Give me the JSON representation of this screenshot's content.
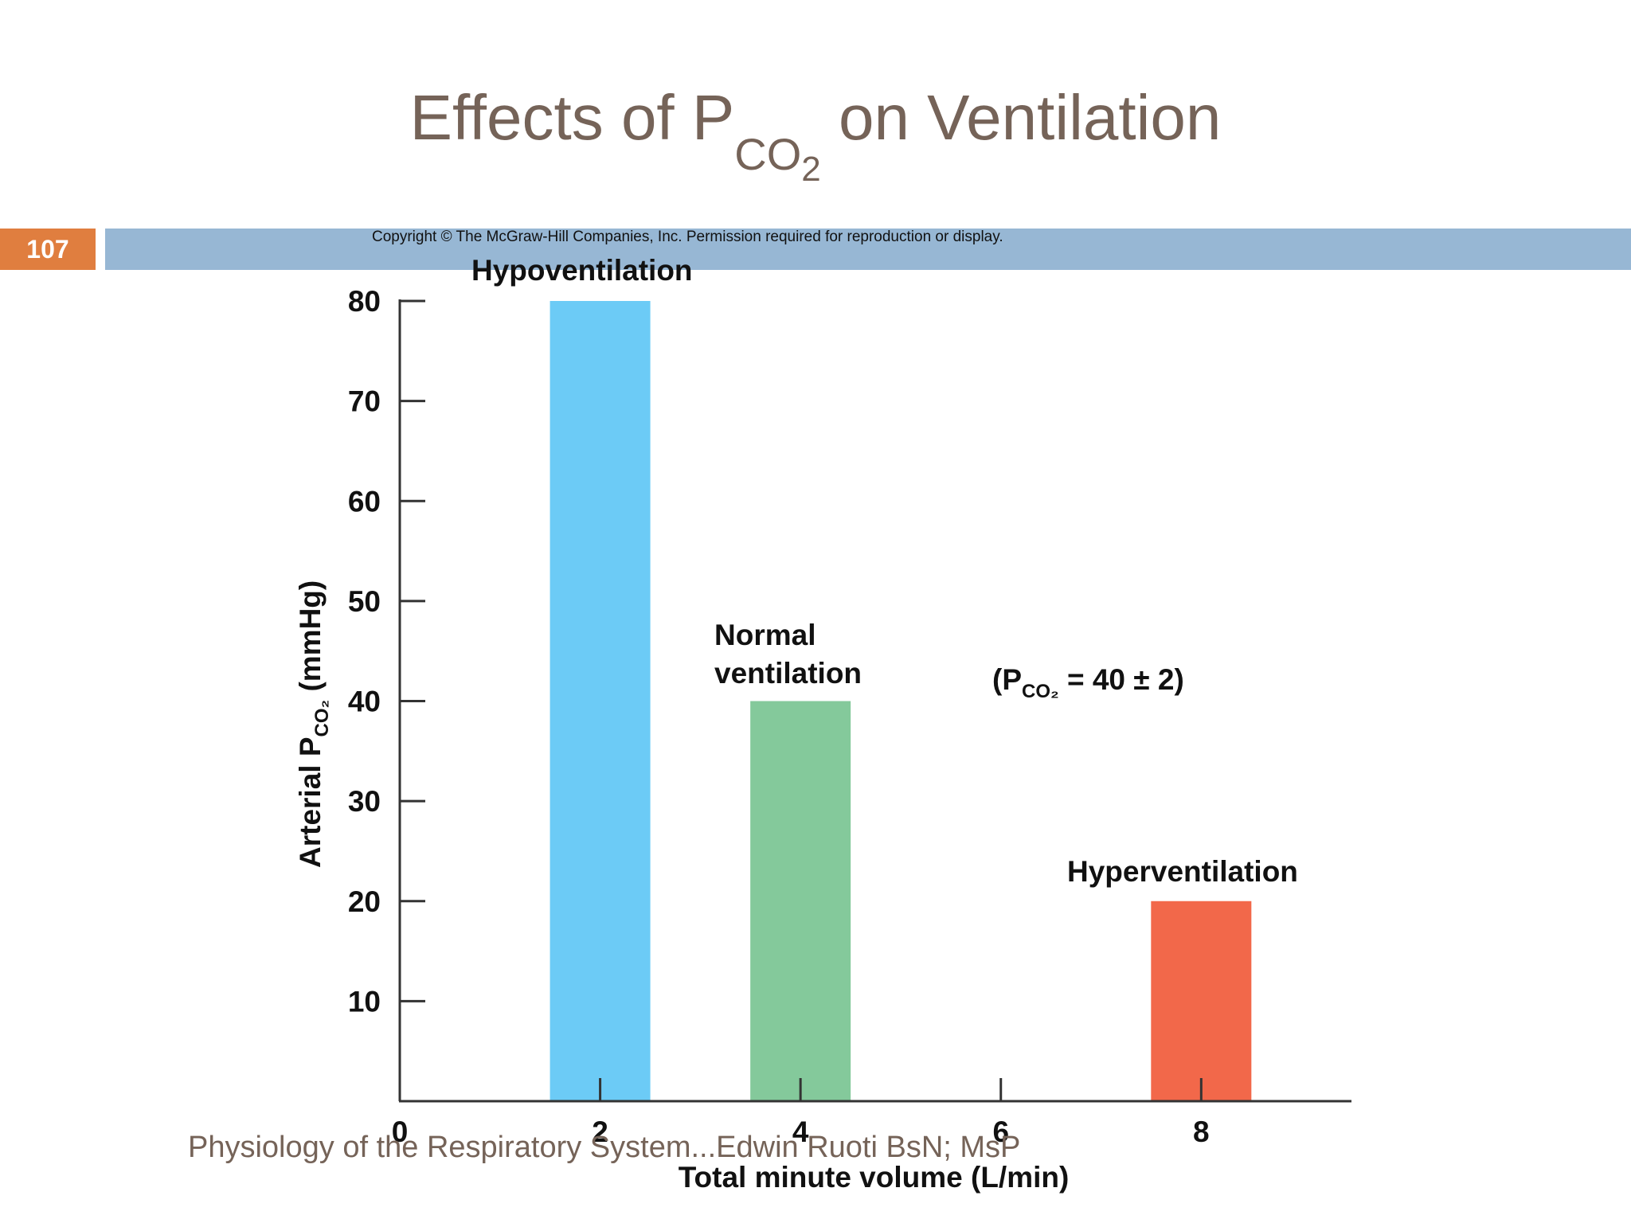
{
  "slide": {
    "number": "107",
    "title_main": "Effects of P",
    "title_sub": "CO",
    "title_sub2": "2",
    "title_end": " on Ventilation",
    "copyright": "Copyright © The McGraw-Hill Companies, Inc. Permission required for reproduction or display.",
    "footer": "Physiology of the Respiratory System...Edwin Ruoti BsN; MsP"
  },
  "colors": {
    "accent_orange": "#e07e3f",
    "band_blue": "#97b7d4",
    "title_brown": "#756358"
  },
  "chart_data": {
    "type": "bar",
    "xlabel": "Total minute volume (L/min)",
    "ylabel_main": "Arterial P",
    "ylabel_sub": "CO₂",
    "ylabel_end": " (mmHg)",
    "x_ticks": [
      0,
      2,
      4,
      6,
      8
    ],
    "y_ticks": [
      10,
      20,
      30,
      40,
      50,
      60,
      70,
      80
    ],
    "xlim": [
      0,
      9.5
    ],
    "ylim": [
      0,
      80
    ],
    "bars": [
      {
        "name": "Hypoventilation",
        "x": 2,
        "value": 80,
        "color": "#6ccbf6"
      },
      {
        "name": "Normal ventilation",
        "x": 4,
        "value": 40,
        "color": "#84c99b"
      },
      {
        "name": "Hyperventilation",
        "x": 8,
        "value": 20,
        "color": "#f2684a"
      }
    ],
    "labels": {
      "hypo": "Hypoventilation",
      "normal_line1": "Normal",
      "normal_line2": "ventilation",
      "hyper": "Hyperventilation"
    },
    "annotation": {
      "main": "(P",
      "sub": "CO₂",
      "end": " = 40 ± 2)"
    }
  }
}
